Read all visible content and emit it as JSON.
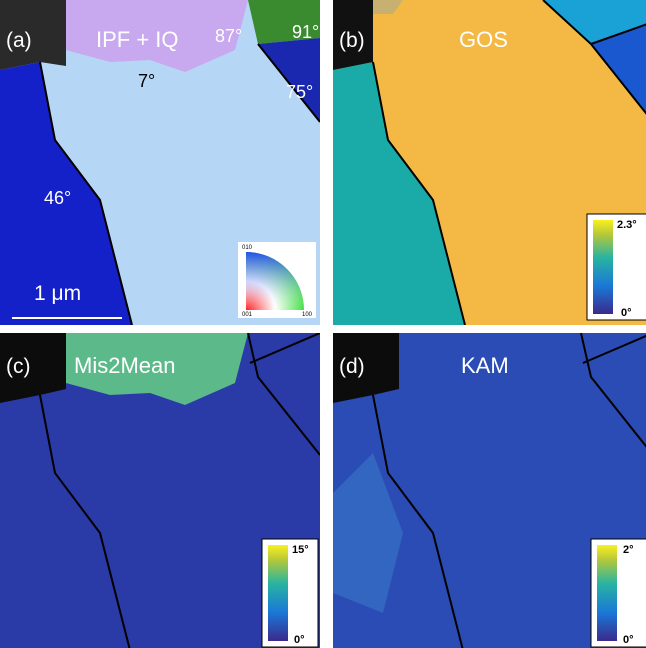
{
  "panels": [
    {
      "label": "(a)",
      "title": "IPF + IQ",
      "annotations": [
        "87°",
        "91°",
        "7°",
        "75°",
        "46°"
      ],
      "scale_bar": "1 μm",
      "legend": [
        "010",
        "001",
        "100"
      ]
    },
    {
      "label": "(b)",
      "title": "GOS",
      "colorbar": [
        "2.3°",
        "0°"
      ]
    },
    {
      "label": "(c)",
      "title": "Mis2Mean",
      "colorbar": [
        "15°",
        "0°"
      ]
    },
    {
      "label": "(d)",
      "title": "KAM",
      "colorbar": [
        "2°",
        "0°"
      ]
    }
  ]
}
